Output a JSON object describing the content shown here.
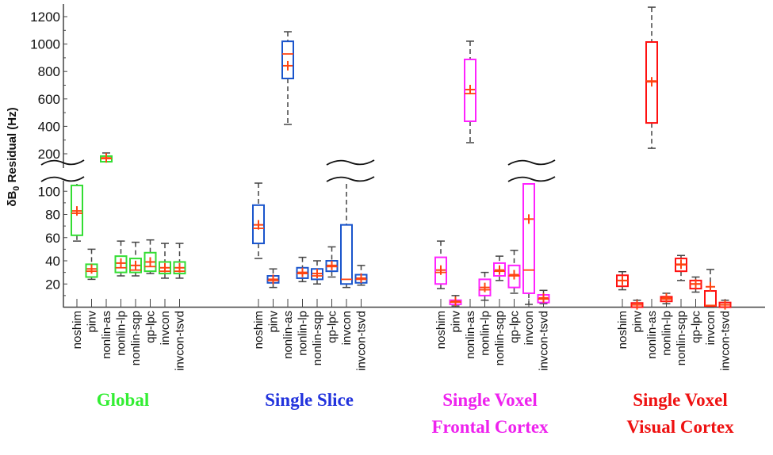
{
  "chart_data": {
    "type": "box",
    "ylabel": {
      "delta": "δB",
      "sub": "0",
      "rest": " Residual (Hz)"
    },
    "yaxis_upper": {
      "range": [
        200,
        1280
      ],
      "ticks": [
        "200",
        "400",
        "600",
        "800",
        "1000",
        "1200"
      ]
    },
    "yaxis_lower": {
      "range": [
        0,
        110
      ],
      "ticks": [
        "20",
        "40",
        "60",
        "80",
        "100"
      ]
    },
    "axis_break": "between 110 and 125 Hz",
    "median_mean_color": "#ff4411",
    "whisker_color": "#444444",
    "groups": [
      {
        "title_lines": [
          "Global"
        ],
        "color": "#33dd33",
        "title_color": "#33ee33",
        "categories": [
          "noshim",
          "pinv",
          "nonlin-as",
          "nonlin-lp",
          "nonlin-sqp",
          "qp-lpc",
          "invcon",
          "invcon-tsvd"
        ],
        "stats": [
          {
            "wlo": 57,
            "q1": 62,
            "med": 81,
            "q3": 105,
            "whi": null,
            "mean": 83
          },
          {
            "wlo": 24,
            "q1": 26,
            "med": 31,
            "q3": 37,
            "whi": 50,
            "mean": 33
          },
          {
            "wlo": 150,
            "q1": 142,
            "med": 165,
            "q3": 183,
            "whi": 206,
            "mean": 170
          },
          {
            "wlo": 27,
            "q1": 30,
            "med": 34,
            "q3": 44,
            "whi": 57,
            "mean": 38
          },
          {
            "wlo": 27,
            "q1": 30,
            "med": 32,
            "q3": 42,
            "whi": 56,
            "mean": 36
          },
          {
            "wlo": 29,
            "q1": 31,
            "med": 35,
            "q3": 47,
            "whi": 58,
            "mean": 39
          },
          {
            "wlo": 25,
            "q1": 29,
            "med": 31,
            "q3": 39,
            "whi": 55,
            "mean": 34
          },
          {
            "wlo": 25,
            "q1": 29,
            "med": 31,
            "q3": 39,
            "whi": 55,
            "mean": 34
          }
        ]
      },
      {
        "title_lines": [
          "Single Slice"
        ],
        "color": "#1a55cc",
        "title_color": "#2233dd",
        "categories": [
          "noshim",
          "pinv",
          "nonlin-as",
          "nonlin-lp",
          "nonlin-sqp",
          "qp-lpc",
          "invcon",
          "invcon-tsvd"
        ],
        "stats": [
          {
            "wlo": 42,
            "q1": 55,
            "med": 68,
            "q3": 88,
            "whi": 107,
            "mean": 71
          },
          {
            "wlo": 17,
            "q1": 21,
            "med": 23,
            "q3": 27,
            "whi": 33,
            "mean": 24
          },
          {
            "wlo": 414,
            "q1": 749,
            "med": 928,
            "q3": 1020,
            "whi": 1090,
            "mean": 842
          },
          {
            "wlo": 22,
            "q1": 25,
            "med": 29,
            "q3": 34,
            "whi": 43,
            "mean": 30
          },
          {
            "wlo": 20,
            "q1": 24,
            "med": 27,
            "q3": 33,
            "whi": 40,
            "mean": 29
          },
          {
            "wlo": 26,
            "q1": 31,
            "med": 35,
            "q3": 40,
            "whi": 52,
            "mean": 36
          },
          {
            "wlo": 17,
            "q1": 20,
            "med": 24,
            "q3": 71,
            "whi": null,
            "mean": null
          },
          {
            "wlo": 19,
            "q1": 21,
            "med": 24,
            "q3": 28,
            "whi": 36,
            "mean": 25
          }
        ]
      },
      {
        "title_lines": [
          "Single Voxel",
          "Frontal Cortex"
        ],
        "color": "#ff22ff",
        "title_color": "#ee22ee",
        "categories": [
          "noshim",
          "pinv",
          "nonlin-as",
          "nonlin-lp",
          "nonlin-sqp",
          "qp-lpc",
          "invcon",
          "invcon-tsvd"
        ],
        "stats": [
          {
            "wlo": 16,
            "q1": 20,
            "med": 30,
            "q3": 43,
            "whi": 57,
            "mean": 32
          },
          {
            "wlo": 1,
            "q1": 2.5,
            "med": 4.4,
            "q3": 6,
            "whi": 10,
            "mean": 5
          },
          {
            "wlo": 281,
            "q1": 437,
            "med": 639,
            "q3": 888,
            "whi": 1021,
            "mean": 668
          },
          {
            "wlo": 6,
            "q1": 10,
            "med": 15,
            "q3": 24,
            "whi": 30,
            "mean": 17
          },
          {
            "wlo": 23,
            "q1": 27,
            "med": 31,
            "q3": 38,
            "whi": 44,
            "mean": 32
          },
          {
            "wlo": 12,
            "q1": 17,
            "med": 27,
            "q3": 36,
            "whi": 49,
            "mean": 28
          },
          {
            "wlo": 2.4,
            "q1": 12,
            "med": 32,
            "q3": null,
            "whi": null,
            "mean": 76
          },
          {
            "wlo": 3,
            "q1": 4,
            "med": 7,
            "q3": 10.6,
            "whi": 14.5,
            "mean": 8
          }
        ]
      },
      {
        "title_lines": [
          "Single Voxel",
          "Visual Cortex"
        ],
        "color": "#ff1111",
        "title_color": "#ee1111",
        "categories": [
          "noshim",
          "pinv",
          "nonlin-as",
          "nonlin-lp",
          "nonlin-sqp",
          "qp-lpc",
          "invcon",
          "invcon-tsvd"
        ],
        "stats": [
          {
            "wlo": 15,
            "q1": 18,
            "med": 23,
            "q3": 27.5,
            "whi": 30.6,
            "mean": 23
          },
          {
            "wlo": 0,
            "q1": 0,
            "med": 2,
            "q3": 3.6,
            "whi": 6,
            "mean": 2
          },
          {
            "wlo": 240,
            "q1": 425,
            "med": 731,
            "q3": 1015,
            "whi": 1269,
            "mean": 725
          },
          {
            "wlo": 3,
            "q1": 5,
            "med": 7,
            "q3": 9,
            "whi": 12,
            "mean": 8
          },
          {
            "wlo": 23,
            "q1": 31,
            "med": 36.5,
            "q3": 42,
            "whi": 44.6,
            "mean": 37
          },
          {
            "wlo": 13,
            "q1": 16,
            "med": 20,
            "q3": 23,
            "whi": 26,
            "mean": 20
          },
          {
            "wlo": 0,
            "q1": 1,
            "med": 1.5,
            "q3": 14,
            "whi": 32.5,
            "mean": 17.6
          },
          {
            "wlo": 0,
            "q1": 0,
            "med": 2,
            "q3": 4,
            "whi": 6,
            "mean": 2
          }
        ]
      }
    ]
  }
}
